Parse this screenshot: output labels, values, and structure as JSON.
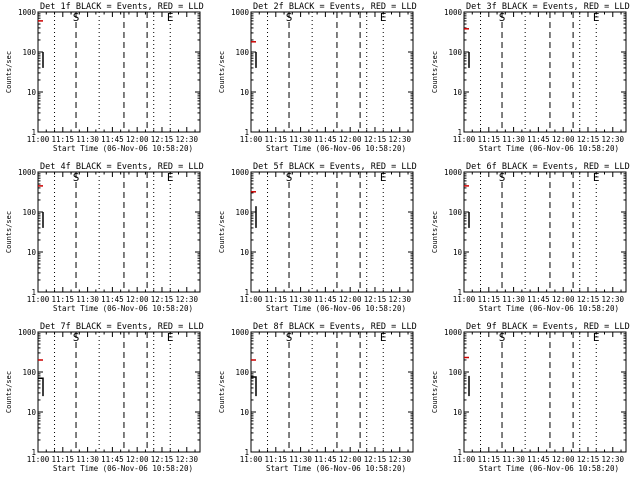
{
  "chart_data": [
    {
      "type": "line",
      "title": "Det 1f BLACK = Events, RED = LLD",
      "xlabel": "Start Time (06-Nov-06 10:58:20)",
      "ylabel": "Counts/sec",
      "ylim": [
        1,
        1000
      ],
      "yscale": "log",
      "xlim": [
        "11:00",
        "12:38"
      ],
      "x_ticks": [
        "11:00",
        "11:15",
        "11:30",
        "11:45",
        "12:00",
        "12:15",
        "12:30"
      ],
      "y_ticks": [
        "1",
        "10",
        "100",
        "1000"
      ],
      "series": [
        {
          "color": "#cc0000",
          "x": [
            "11:00",
            "11:03"
          ],
          "y": [
            600,
            600
          ]
        },
        {
          "color": "#000000",
          "x": [
            "11:03",
            "11:03",
            "11:03"
          ],
          "y": [
            100,
            100,
            40
          ]
        }
      ],
      "markers": [
        {
          "label": "S",
          "x": "11:23"
        },
        {
          "label": "E",
          "x": "12:20"
        }
      ],
      "vlines_dashed": [
        "11:23",
        "11:52",
        "12:06"
      ],
      "vlines_dotted": [
        "11:10",
        "11:37",
        "12:10",
        "12:20"
      ]
    },
    {
      "type": "line",
      "title": "Det 2f BLACK = Events, RED = LLD",
      "xlabel": "Start Time (06-Nov-06 10:58:20)",
      "ylabel": "Counts/sec",
      "ylim": [
        1,
        1000
      ],
      "yscale": "log",
      "xlim": [
        "11:00",
        "12:38"
      ],
      "x_ticks": [
        "11:00",
        "11:15",
        "11:30",
        "11:45",
        "12:00",
        "12:15",
        "12:30"
      ],
      "y_ticks": [
        "1",
        "10",
        "100",
        "1000"
      ],
      "series": [
        {
          "color": "#cc0000",
          "x": [
            "11:00",
            "11:03"
          ],
          "y": [
            180,
            180
          ]
        },
        {
          "color": "#000000",
          "x": [
            "11:03",
            "11:03"
          ],
          "y": [
            100,
            40
          ]
        }
      ],
      "markers": [
        {
          "label": "S",
          "x": "11:23"
        },
        {
          "label": "E",
          "x": "12:20"
        }
      ],
      "vlines_dashed": [
        "11:23",
        "11:52",
        "12:06"
      ],
      "vlines_dotted": [
        "11:10",
        "11:37",
        "12:10",
        "12:20"
      ]
    },
    {
      "type": "line",
      "title": "Det 3f BLACK = Events, RED = LLD",
      "xlabel": "Start Time (06-Nov-06 10:58:20)",
      "ylabel": "Counts/sec",
      "ylim": [
        1,
        1000
      ],
      "yscale": "log",
      "xlim": [
        "11:00",
        "12:38"
      ],
      "x_ticks": [
        "11:00",
        "11:15",
        "11:30",
        "11:45",
        "12:00",
        "12:15",
        "12:30"
      ],
      "y_ticks": [
        "1",
        "10",
        "100",
        "1000"
      ],
      "series": [
        {
          "color": "#cc0000",
          "x": [
            "11:00",
            "11:03"
          ],
          "y": [
            380,
            380
          ]
        },
        {
          "color": "#000000",
          "x": [
            "11:03",
            "11:03"
          ],
          "y": [
            100,
            40
          ]
        }
      ],
      "markers": [
        {
          "label": "S",
          "x": "11:23"
        },
        {
          "label": "E",
          "x": "12:20"
        }
      ],
      "vlines_dashed": [
        "11:23",
        "11:52",
        "12:06"
      ],
      "vlines_dotted": [
        "11:10",
        "11:37",
        "12:10",
        "12:20"
      ]
    },
    {
      "type": "line",
      "title": "Det 4f BLACK = Events, RED = LLD",
      "xlabel": "Start Time (06-Nov-06 10:58:20)",
      "ylabel": "Counts/sec",
      "ylim": [
        1,
        1000
      ],
      "yscale": "log",
      "xlim": [
        "11:00",
        "12:38"
      ],
      "x_ticks": [
        "11:00",
        "11:15",
        "11:30",
        "11:45",
        "12:00",
        "12:15",
        "12:30"
      ],
      "y_ticks": [
        "1",
        "10",
        "100",
        "1000"
      ],
      "series": [
        {
          "color": "#cc0000",
          "x": [
            "11:00",
            "11:03"
          ],
          "y": [
            450,
            450
          ]
        },
        {
          "color": "#000000",
          "x": [
            "11:03",
            "11:03"
          ],
          "y": [
            100,
            40
          ]
        }
      ],
      "markers": [
        {
          "label": "S",
          "x": "11:23"
        },
        {
          "label": "E",
          "x": "12:20"
        }
      ],
      "vlines_dashed": [
        "11:23",
        "11:52",
        "12:06"
      ],
      "vlines_dotted": [
        "11:10",
        "11:37",
        "12:10",
        "12:20"
      ]
    },
    {
      "type": "line",
      "title": "Det 5f BLACK = Events, RED = LLD",
      "xlabel": "Start Time (06-Nov-06 10:58:20)",
      "ylabel": "Counts/sec",
      "ylim": [
        1,
        1000
      ],
      "yscale": "log",
      "xlim": [
        "11:00",
        "12:38"
      ],
      "x_ticks": [
        "11:00",
        "11:15",
        "11:30",
        "11:45",
        "12:00",
        "12:15",
        "12:30"
      ],
      "y_ticks": [
        "1",
        "10",
        "100",
        "1000"
      ],
      "series": [
        {
          "color": "#cc0000",
          "x": [
            "11:00",
            "11:03"
          ],
          "y": [
            320,
            320
          ]
        },
        {
          "color": "#000000",
          "x": [
            "11:03",
            "11:03"
          ],
          "y": [
            140,
            40
          ]
        }
      ],
      "markers": [
        {
          "label": "S",
          "x": "11:23"
        },
        {
          "label": "E",
          "x": "12:20"
        }
      ],
      "vlines_dashed": [
        "11:23",
        "11:52",
        "12:06"
      ],
      "vlines_dotted": [
        "11:10",
        "11:37",
        "12:10",
        "12:20"
      ]
    },
    {
      "type": "line",
      "title": "Det 6f BLACK = Events, RED = LLD",
      "xlabel": "Start Time (06-Nov-06 10:58:20)",
      "ylabel": "Counts/sec",
      "ylim": [
        1,
        1000
      ],
      "yscale": "log",
      "xlim": [
        "11:00",
        "12:38"
      ],
      "x_ticks": [
        "11:00",
        "11:15",
        "11:30",
        "11:45",
        "12:00",
        "12:15",
        "12:30"
      ],
      "y_ticks": [
        "1",
        "10",
        "100",
        "1000"
      ],
      "series": [
        {
          "color": "#cc0000",
          "x": [
            "11:00",
            "11:03"
          ],
          "y": [
            450,
            450
          ]
        },
        {
          "color": "#000000",
          "x": [
            "11:03",
            "11:03"
          ],
          "y": [
            100,
            40
          ]
        }
      ],
      "markers": [
        {
          "label": "S",
          "x": "11:23"
        },
        {
          "label": "E",
          "x": "12:20"
        }
      ],
      "vlines_dashed": [
        "11:23",
        "11:52",
        "12:06"
      ],
      "vlines_dotted": [
        "11:10",
        "11:37",
        "12:10",
        "12:20"
      ]
    },
    {
      "type": "line",
      "title": "Det 7f BLACK = Events, RED = LLD",
      "xlabel": "Start Time (06-Nov-06 10:58:20)",
      "ylabel": "Counts/sec",
      "ylim": [
        1,
        1000
      ],
      "yscale": "log",
      "xlim": [
        "11:00",
        "12:38"
      ],
      "x_ticks": [
        "11:00",
        "11:15",
        "11:30",
        "11:45",
        "12:00",
        "12:15",
        "12:30"
      ],
      "y_ticks": [
        "1",
        "10",
        "100",
        "1000"
      ],
      "series": [
        {
          "color": "#cc0000",
          "x": [
            "11:00",
            "11:03"
          ],
          "y": [
            200,
            200
          ]
        },
        {
          "color": "#000000",
          "x": [
            "11:00",
            "11:03",
            "11:03"
          ],
          "y": [
            70,
            70,
            25
          ]
        }
      ],
      "markers": [
        {
          "label": "S",
          "x": "11:23"
        },
        {
          "label": "E",
          "x": "12:20"
        }
      ],
      "vlines_dashed": [
        "11:23",
        "11:52",
        "12:06"
      ],
      "vlines_dotted": [
        "11:10",
        "11:37",
        "12:10",
        "12:20"
      ]
    },
    {
      "type": "line",
      "title": "Det 8f BLACK = Events, RED = LLD",
      "xlabel": "Start Time (06-Nov-06 10:58:20)",
      "ylabel": "Counts/sec",
      "ylim": [
        1,
        1000
      ],
      "yscale": "log",
      "xlim": [
        "11:00",
        "12:38"
      ],
      "x_ticks": [
        "11:00",
        "11:15",
        "11:30",
        "11:45",
        "12:00",
        "12:15",
        "12:30"
      ],
      "y_ticks": [
        "1",
        "10",
        "100",
        "1000"
      ],
      "series": [
        {
          "color": "#cc0000",
          "x": [
            "11:00",
            "11:03"
          ],
          "y": [
            200,
            200
          ]
        },
        {
          "color": "#000000",
          "x": [
            "11:00",
            "11:03",
            "11:03"
          ],
          "y": [
            75,
            75,
            25
          ]
        }
      ],
      "markers": [
        {
          "label": "S",
          "x": "11:23"
        },
        {
          "label": "E",
          "x": "12:20"
        }
      ],
      "vlines_dashed": [
        "11:23",
        "11:52",
        "12:06"
      ],
      "vlines_dotted": [
        "11:10",
        "11:37",
        "12:10",
        "12:20"
      ]
    },
    {
      "type": "line",
      "title": "Det 9f BLACK = Events, RED = LLD",
      "xlabel": "Start Time (06-Nov-06 10:58:20)",
      "ylabel": "Counts/sec",
      "ylim": [
        1,
        1000
      ],
      "yscale": "log",
      "xlim": [
        "11:00",
        "12:38"
      ],
      "x_ticks": [
        "11:00",
        "11:15",
        "11:30",
        "11:45",
        "12:00",
        "12:15",
        "12:30"
      ],
      "y_ticks": [
        "1",
        "10",
        "100",
        "1000"
      ],
      "series": [
        {
          "color": "#cc0000",
          "x": [
            "11:00",
            "11:03"
          ],
          "y": [
            230,
            230
          ]
        },
        {
          "color": "#000000",
          "x": [
            "11:03",
            "11:03"
          ],
          "y": [
            80,
            25
          ]
        }
      ],
      "markers": [
        {
          "label": "S",
          "x": "11:23"
        },
        {
          "label": "E",
          "x": "12:20"
        }
      ],
      "vlines_dashed": [
        "11:23",
        "11:52",
        "12:06"
      ],
      "vlines_dotted": [
        "11:10",
        "11:37",
        "12:10",
        "12:20"
      ]
    }
  ]
}
